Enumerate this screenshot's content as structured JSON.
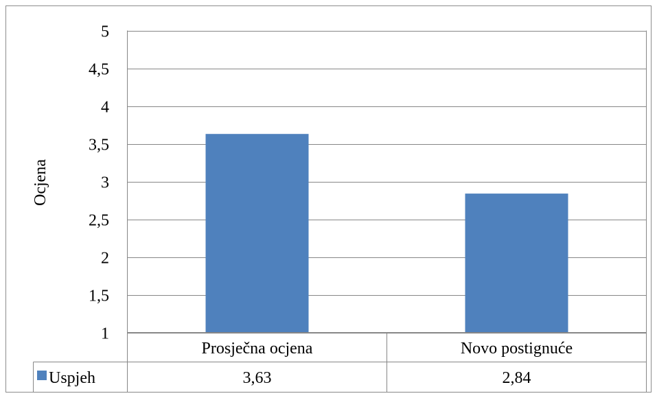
{
  "chart_data": {
    "type": "bar",
    "categories": [
      "Prosječna ocjena",
      "Novo postignuće"
    ],
    "series": [
      {
        "name": "Uspjeh",
        "values": [
          3.63,
          2.84
        ],
        "value_labels": [
          "3,63",
          "2,84"
        ]
      }
    ],
    "ylabel": "Ocjena",
    "ylim": [
      1,
      5
    ],
    "yticks": [
      1,
      1.5,
      2,
      2.5,
      3,
      3.5,
      4,
      4.5,
      5
    ],
    "ytick_labels": [
      "1",
      "1,5",
      "2",
      "2,5",
      "3",
      "3,5",
      "4",
      "4,5",
      "5"
    ],
    "grid": true,
    "legend_position": "data-table",
    "colors": {
      "bar": "#4F81BD"
    }
  }
}
